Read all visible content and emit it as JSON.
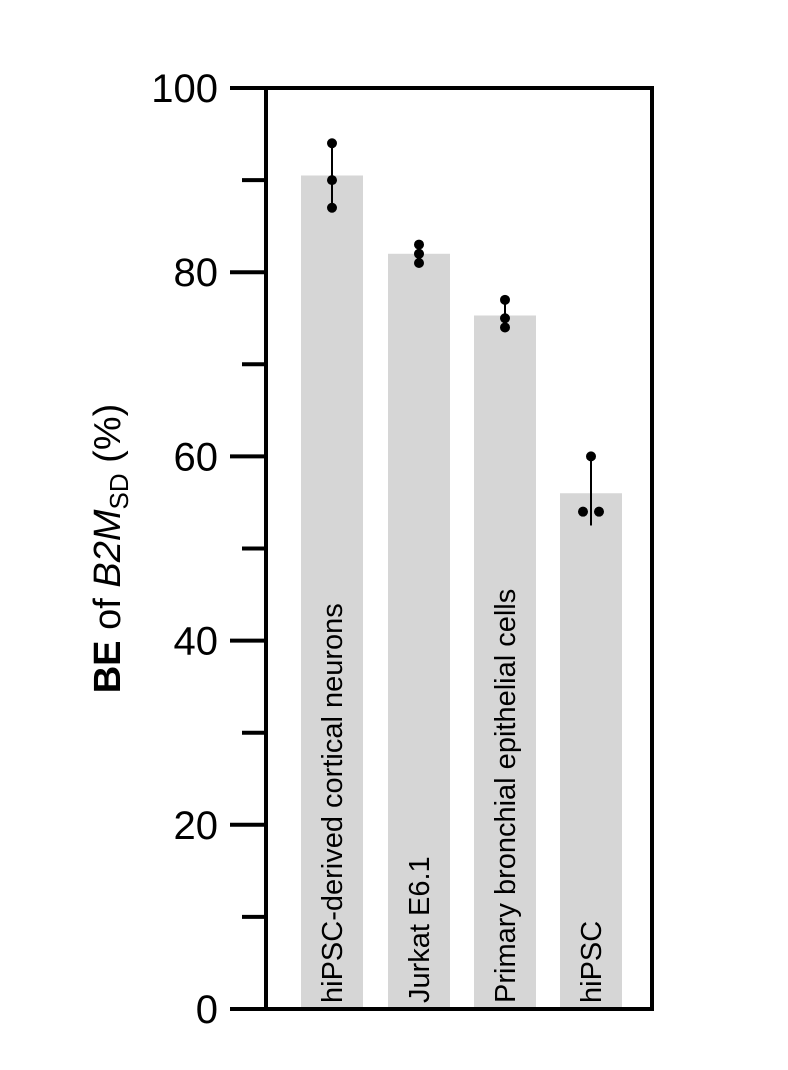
{
  "chart_data": {
    "type": "bar",
    "categories": [
      "hiPSC-derived cortical neurons",
      "Jurkat E6.1",
      "Primary bronchial epithelial cells",
      "hiPSC"
    ],
    "values": [
      90.5,
      82,
      75.3,
      56
    ],
    "error_bars": [
      {
        "low": 87,
        "high": 94
      },
      {
        "low": 81,
        "high": 83
      },
      {
        "low": 74,
        "high": 77
      },
      {
        "low": 52.5,
        "high": 60
      }
    ],
    "points": [
      [
        87,
        90,
        94
      ],
      [
        81,
        82,
        83
      ],
      [
        74,
        75,
        77
      ],
      [
        54,
        54,
        60
      ]
    ],
    "ylabel": {
      "bold": "BE",
      "of": " of ",
      "italic": "B2M",
      "sub": "SD",
      "suffix": " (%)"
    },
    "ylim": [
      0,
      100
    ],
    "yticks": [
      "0",
      "20",
      "40",
      "60",
      "80",
      "100"
    ],
    "ytick_values": [
      0,
      20,
      40,
      60,
      80,
      100
    ],
    "minor_ticks": [
      10,
      30,
      50,
      70,
      90
    ],
    "colors": {
      "bar": "#d6d6d6",
      "axis": "#000000",
      "point": "#000000"
    }
  }
}
